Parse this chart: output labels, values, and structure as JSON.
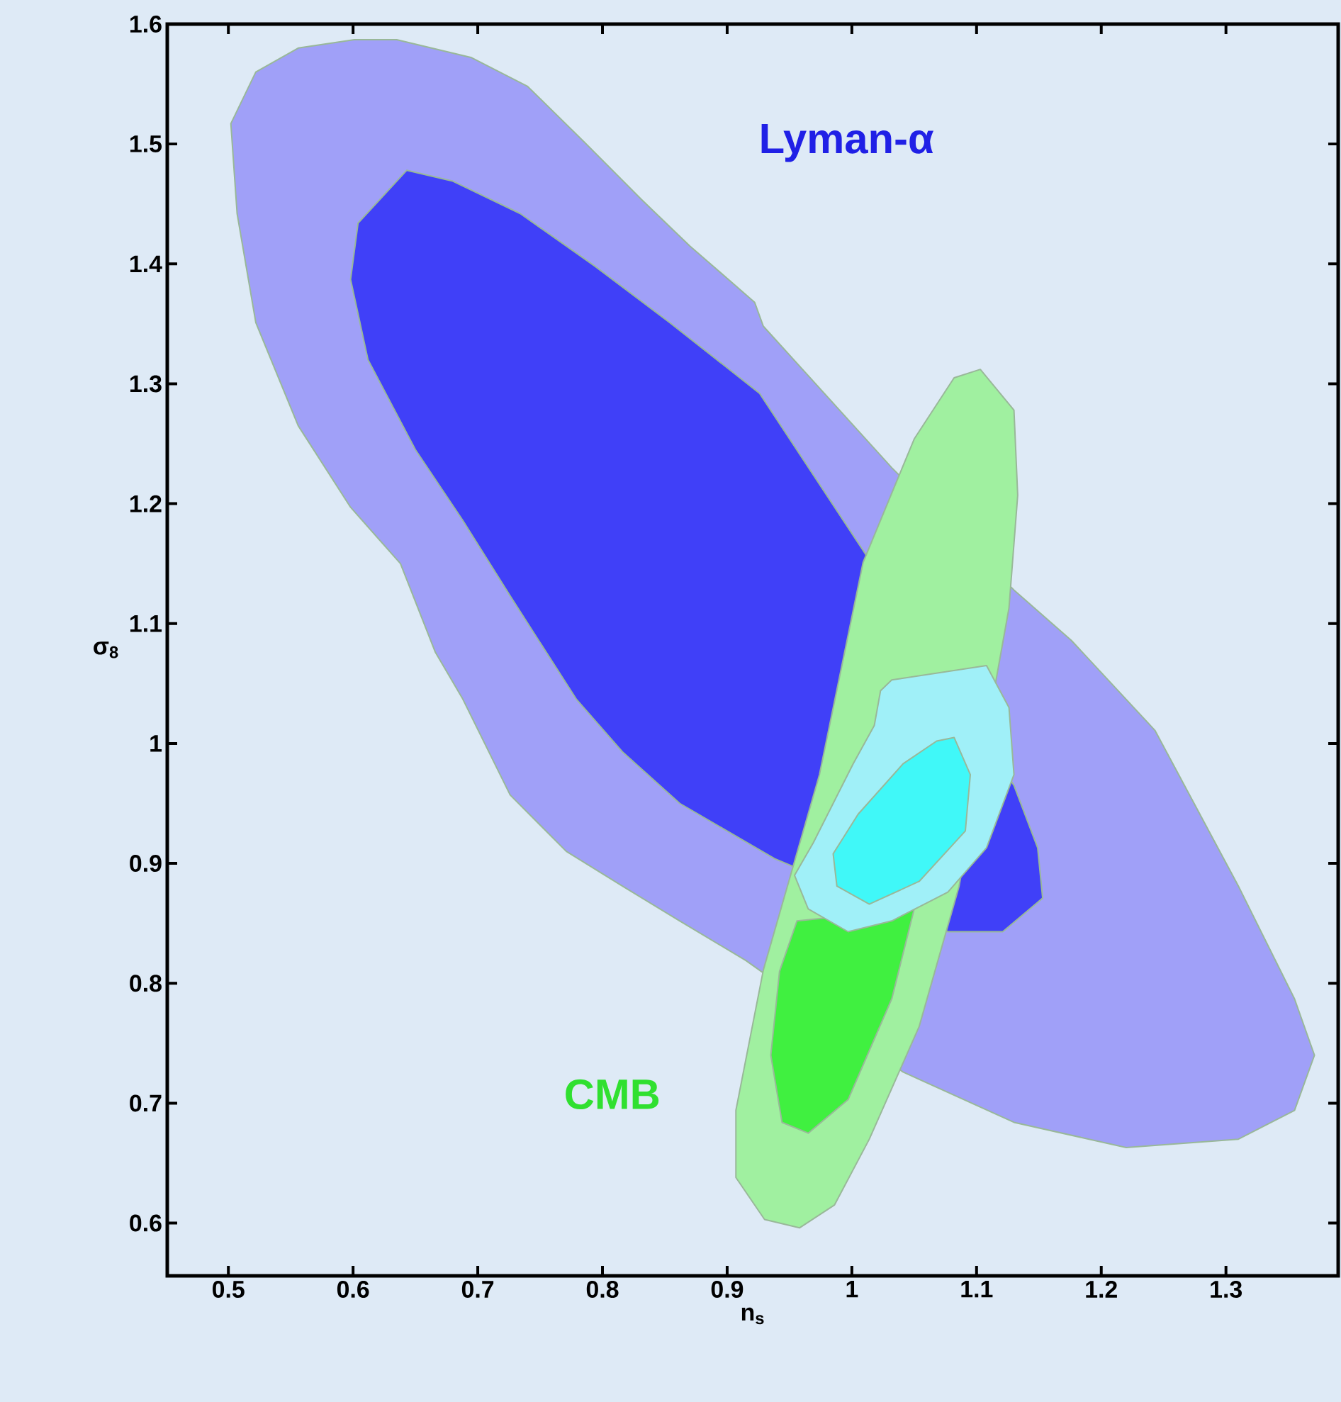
{
  "chart_data": {
    "type": "area",
    "xlabel": "n$_{s}$",
    "ylabel": "σ$_{8}$",
    "annotations": [
      "Lyman-α",
      "CMB"
    ],
    "xlim": [
      0.451,
      1.39
    ],
    "ylim": [
      0.556,
      1.6
    ],
    "xticks": [
      0.5,
      0.6,
      0.7,
      0.8,
      0.9,
      1,
      1.1,
      1.2,
      1.3
    ],
    "yticks": [
      0.6,
      0.7,
      0.8,
      0.9,
      1,
      1.1,
      1.2,
      1.3,
      1.4,
      1.5,
      1.6
    ],
    "series": [
      {
        "color": "#a0a0f8",
        "x": [
          0.601,
          0.635,
          0.695,
          0.74,
          0.786,
          0.831,
          0.87,
          0.922,
          0.929,
          1.032,
          1.13,
          1.176,
          1.243,
          1.31,
          1.355,
          1.371,
          1.355,
          1.31,
          1.22,
          1.13,
          1.041,
          0.915,
          0.862,
          0.816,
          0.771,
          0.726,
          0.688,
          0.666,
          0.638,
          0.598,
          0.556,
          0.522,
          0.507,
          0.502,
          0.522,
          0.556
        ],
        "values": [
          1.587,
          1.587,
          1.572,
          1.548,
          1.501,
          1.454,
          1.415,
          1.368,
          1.348,
          1.23,
          1.128,
          1.086,
          1.011,
          0.881,
          0.787,
          0.74,
          0.694,
          0.67,
          0.663,
          0.684,
          0.726,
          0.819,
          0.852,
          0.881,
          0.91,
          0.957,
          1.037,
          1.076,
          1.15,
          1.197,
          1.265,
          1.351,
          1.442,
          1.517,
          1.56,
          1.58
        ]
      },
      {
        "color": "#4040f8",
        "x": [
          0.643,
          0.68,
          0.734,
          0.794,
          0.854,
          0.926,
          1.009,
          1.13,
          1.149,
          1.153,
          1.121,
          1.077,
          0.938,
          0.862,
          0.816,
          0.779,
          0.726,
          0.688,
          0.65,
          0.612,
          0.598,
          0.604
        ],
        "values": [
          1.478,
          1.469,
          1.442,
          1.398,
          1.351,
          1.292,
          1.161,
          0.965,
          0.913,
          0.871,
          0.843,
          0.843,
          0.904,
          0.95,
          0.993,
          1.037,
          1.123,
          1.186,
          1.245,
          1.32,
          1.387,
          1.434
        ]
      },
      {
        "color": "#a0f0a0",
        "x": [
          1.103,
          1.13,
          1.133,
          1.126,
          1.086,
          1.054,
          1.014,
          0.986,
          0.958,
          0.93,
          0.907,
          0.907,
          0.929,
          0.974,
          1.009,
          1.05,
          1.082
        ],
        "values": [
          1.312,
          1.278,
          1.207,
          1.113,
          0.881,
          0.764,
          0.67,
          0.615,
          0.596,
          0.603,
          0.638,
          0.694,
          0.811,
          0.974,
          1.151,
          1.254,
          1.305
        ]
      },
      {
        "color": "#40f040",
        "x": [
          1.05,
          1.032,
          0.997,
          0.965,
          0.944,
          0.935,
          0.942,
          0.956
        ],
        "values": [
          0.862,
          0.787,
          0.703,
          0.675,
          0.684,
          0.74,
          0.81,
          0.852
        ]
      },
      {
        "color": "#a0f0f8",
        "x": [
          1.032,
          1.108,
          1.126,
          1.13,
          1.108,
          1.077,
          1.032,
          0.997,
          0.965,
          0.954,
          0.969,
          1.001,
          1.018,
          1.023
        ],
        "values": [
          1.053,
          1.065,
          1.03,
          0.974,
          0.913,
          0.876,
          0.852,
          0.843,
          0.862,
          0.89,
          0.917,
          0.983,
          1.015,
          1.044
        ]
      },
      {
        "color": "#40f8f8",
        "x": [
          1.082,
          1.095,
          1.091,
          1.054,
          1.014,
          0.988,
          0.985,
          1.005,
          1.041,
          1.068
        ],
        "values": [
          1.005,
          0.974,
          0.927,
          0.885,
          0.866,
          0.881,
          0.908,
          0.941,
          0.983,
          1.002
        ]
      }
    ]
  }
}
